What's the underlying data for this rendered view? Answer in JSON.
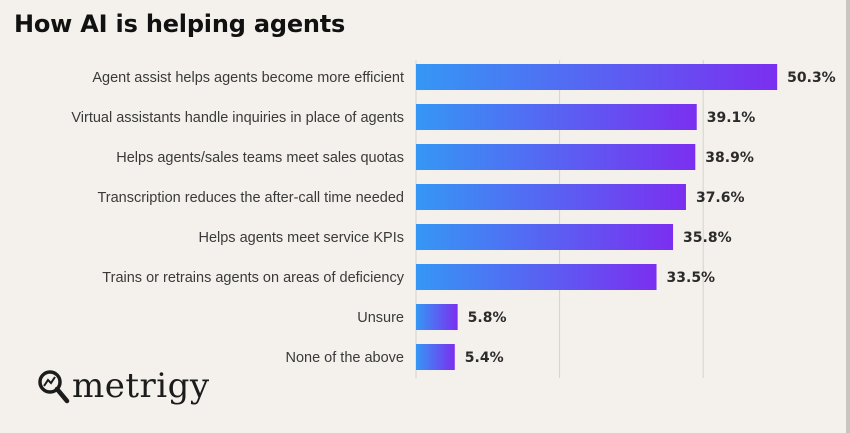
{
  "title": "How AI is helping agents",
  "logo": {
    "name": "metrigy",
    "icon": "magnifier-icon"
  },
  "colors": {
    "bar_start": "#3597f5",
    "bar_end": "#7b2ff0",
    "background": "#f4f1ed",
    "grid": "#d6d3cf"
  },
  "chart_data": {
    "type": "bar",
    "orientation": "horizontal",
    "title": "How AI is helping agents",
    "categories": [
      "Agent assist helps agents become more efficient",
      "Virtual assistants handle inquiries in place of agents",
      "Helps agents/sales teams meet sales quotas",
      "Transcription reduces the after-call time needed",
      "Helps agents meet service KPIs",
      "Trains or retrains agents on areas of deficiency",
      "Unsure",
      "None of the above"
    ],
    "values": [
      50.3,
      39.1,
      38.9,
      37.6,
      35.8,
      33.5,
      5.8,
      5.4
    ],
    "value_labels": [
      "50.3%",
      "39.1%",
      "38.9%",
      "37.6%",
      "35.8%",
      "33.5%",
      "5.8%",
      "5.4%"
    ],
    "xlim": [
      0,
      60
    ],
    "grid": true,
    "xlabel": "",
    "ylabel": ""
  }
}
